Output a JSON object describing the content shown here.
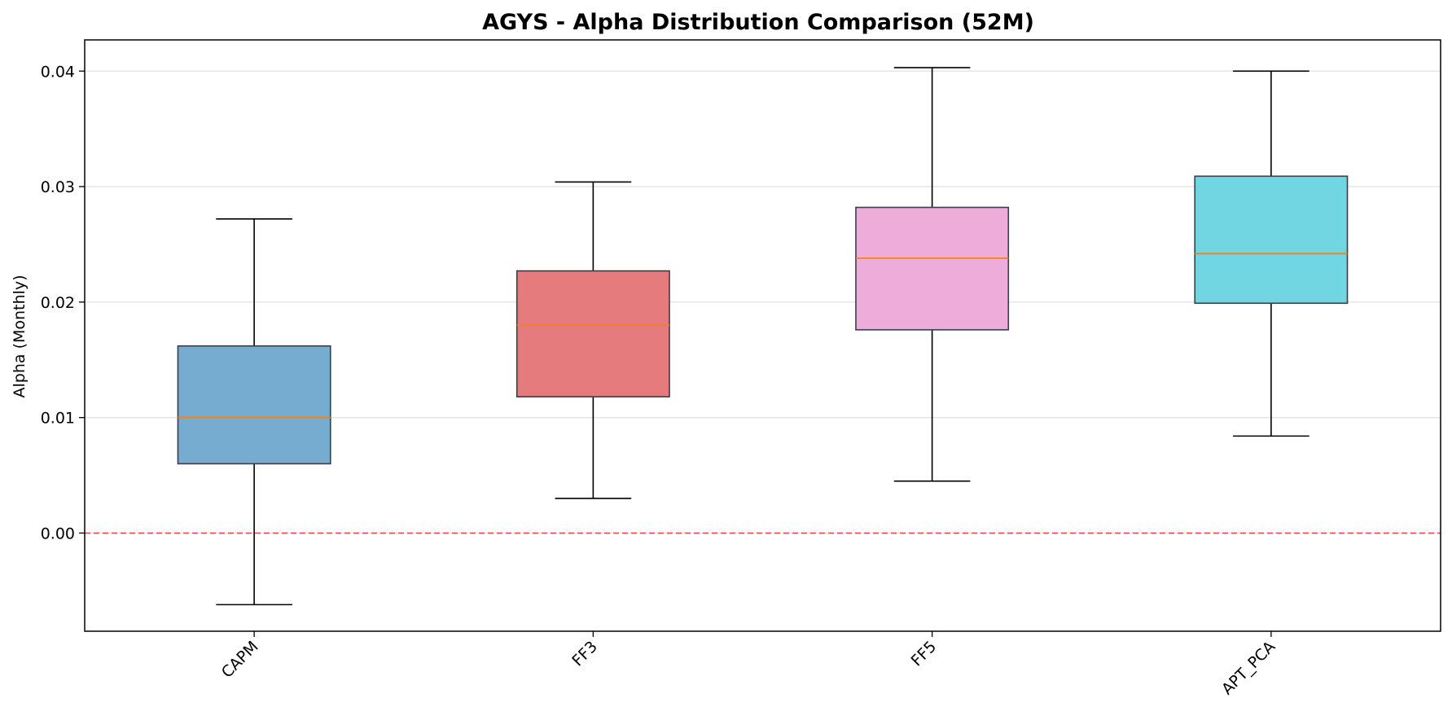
{
  "chart_data": {
    "type": "box",
    "title": "AGYS - Alpha Distribution Comparison (52M)",
    "xlabel": "",
    "ylabel": "Alpha (Monthly)",
    "ylim": [
      -0.0085,
      0.0427
    ],
    "yticks": [
      0.0,
      0.01,
      0.02,
      0.03,
      0.04
    ],
    "ytick_labels": [
      "0.00",
      "0.01",
      "0.02",
      "0.03",
      "0.04"
    ],
    "grid": "horizontal",
    "reference_line": {
      "y": 0.0,
      "color": "#e8424a",
      "style": "dashed"
    },
    "median_color": "#ff7f0e",
    "categories": [
      "CAPM",
      "FF3",
      "FF5",
      "APT_PCA"
    ],
    "boxes": [
      {
        "name": "CAPM",
        "whisker_low": -0.0062,
        "q1": 0.006,
        "median": 0.01,
        "q3": 0.0162,
        "whisker_high": 0.0272,
        "color": "#75acd0"
      },
      {
        "name": "FF3",
        "whisker_low": 0.003,
        "q1": 0.0118,
        "median": 0.018,
        "q3": 0.0227,
        "whisker_high": 0.0304,
        "color": "#e57b7c"
      },
      {
        "name": "FF5",
        "whisker_low": 0.0045,
        "q1": 0.0176,
        "median": 0.0238,
        "q3": 0.0282,
        "whisker_high": 0.0403,
        "color": "#eeacda"
      },
      {
        "name": "APT_PCA",
        "whisker_low": 0.0084,
        "q1": 0.0199,
        "median": 0.0242,
        "q3": 0.0309,
        "whisker_high": 0.04,
        "color": "#71d6e2"
      }
    ]
  }
}
